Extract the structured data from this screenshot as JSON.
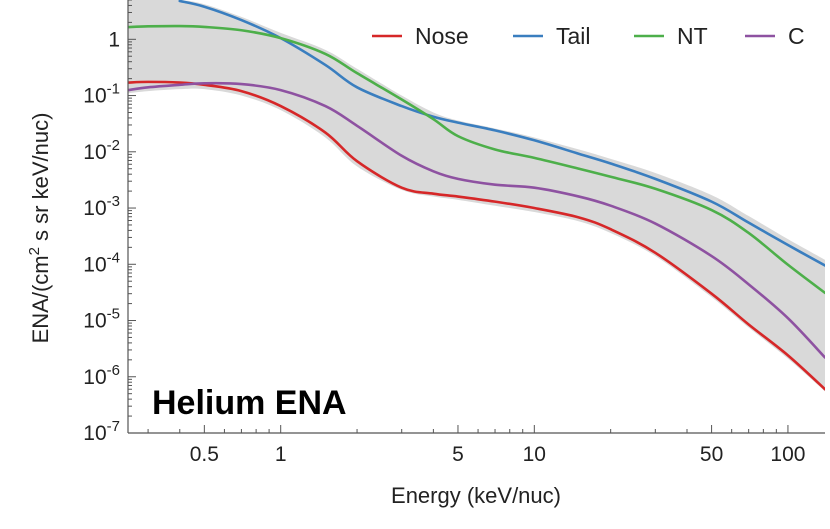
{
  "chart_data": {
    "type": "line",
    "title": "",
    "annotation": "Helium ENA",
    "xlabel": "Energy (keV/nuc)",
    "ylabel": {
      "pre": "ENA/(cm",
      "sup": "2",
      "post": " s sr keV/nuc)"
    },
    "x_scale": "log",
    "y_scale": "log",
    "xlim": [
      0.25,
      140
    ],
    "ylim": [
      1e-07,
      5
    ],
    "grid": false,
    "legend_position": "top-right",
    "x_ticks": [
      {
        "value": 0.5,
        "label": "0.5"
      },
      {
        "value": 1,
        "label": "1"
      },
      {
        "value": 5,
        "label": "5"
      },
      {
        "value": 10,
        "label": "10"
      },
      {
        "value": 50,
        "label": "50"
      },
      {
        "value": 100,
        "label": "100"
      }
    ],
    "y_ticks": [
      {
        "value": 1,
        "base": "1",
        "exp": ""
      },
      {
        "value": 0.1,
        "base": "10",
        "exp": "-1"
      },
      {
        "value": 0.01,
        "base": "10",
        "exp": "-2"
      },
      {
        "value": 0.001,
        "base": "10",
        "exp": "-3"
      },
      {
        "value": 0.0001,
        "base": "10",
        "exp": "-4"
      },
      {
        "value": 1e-05,
        "base": "10",
        "exp": "-5"
      },
      {
        "value": 1e-06,
        "base": "10",
        "exp": "-6"
      },
      {
        "value": 1e-07,
        "base": "10",
        "exp": "-7"
      }
    ],
    "x": [
      0.25,
      0.3,
      0.4,
      0.5,
      0.7,
      1,
      1.5,
      2,
      3,
      4,
      5,
      7,
      10,
      15,
      20,
      30,
      50,
      70,
      100,
      140
    ],
    "series": [
      {
        "name": "Nose",
        "color": "#d62728",
        "values": [
          0.17,
          0.175,
          0.17,
          0.155,
          0.12,
          0.065,
          0.022,
          0.0068,
          0.0023,
          0.0018,
          0.0016,
          0.0013,
          0.001,
          0.00068,
          0.00042,
          0.00016,
          3e-05,
          8.5e-06,
          2.4e-06,
          6e-07
        ]
      },
      {
        "name": "Tail",
        "color": "#3a7ebf",
        "values": [
          null,
          null,
          4.8,
          3.8,
          2.2,
          1.05,
          0.35,
          0.14,
          0.065,
          0.042,
          0.033,
          0.024,
          0.016,
          0.0092,
          0.0062,
          0.0033,
          0.0013,
          0.00055,
          0.00022,
          9.5e-05
        ]
      },
      {
        "name": "NT",
        "color": "#4daf4a",
        "values": [
          1.65,
          1.7,
          1.72,
          1.66,
          1.45,
          1.05,
          0.55,
          0.25,
          0.085,
          0.038,
          0.019,
          0.011,
          0.0078,
          0.005,
          0.0036,
          0.0022,
          0.00092,
          0.00036,
          9.8e-05,
          3.1e-05
        ]
      },
      {
        "name": "C",
        "color": "#8e52a1",
        "values": [
          0.125,
          0.14,
          0.155,
          0.165,
          0.16,
          0.125,
          0.065,
          0.029,
          0.0085,
          0.0045,
          0.0033,
          0.0026,
          0.0023,
          0.0016,
          0.0011,
          0.00053,
          0.00014,
          4.4e-05,
          1.1e-05,
          2.2e-06
        ]
      }
    ],
    "band": {
      "color": "#d9d9d9",
      "lower": [
        0.11,
        0.12,
        0.13,
        0.13,
        0.1,
        0.055,
        0.018,
        0.0055,
        0.0021,
        0.0016,
        0.0014,
        0.0011,
        0.00085,
        0.00058,
        0.00036,
        0.00014,
        2.6e-05,
        7.5e-06,
        2.1e-06,
        5.5e-07
      ],
      "upper": [
        5,
        5,
        5,
        4.2,
        2.5,
        1.3,
        0.65,
        0.3,
        0.1,
        0.05,
        0.036,
        0.026,
        0.018,
        0.011,
        0.0075,
        0.0042,
        0.0017,
        0.00072,
        0.00028,
        0.00012
      ]
    }
  }
}
